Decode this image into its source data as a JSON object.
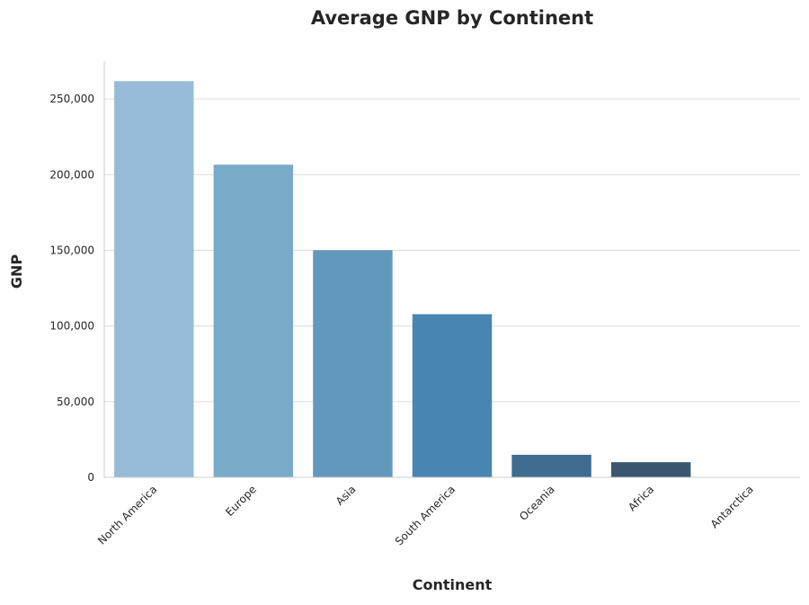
{
  "chart_data": {
    "type": "bar",
    "title": "Average GNP by Continent",
    "xlabel": "Continent",
    "ylabel": "GNP",
    "categories": [
      "North America",
      "Europe",
      "Asia",
      "South America",
      "Oceania",
      "Africa",
      "Antarctica"
    ],
    "values": [
      261800,
      206600,
      150100,
      107800,
      14900,
      10000,
      0
    ],
    "ylim": [
      0,
      275000
    ],
    "yticks": [
      0,
      50000,
      100000,
      150000,
      200000,
      250000
    ],
    "ytick_labels": [
      "0",
      "50,000",
      "100,000",
      "150,000",
      "200,000",
      "250,000"
    ],
    "colors": [
      "#98bcd7",
      "#7aaac9",
      "#6398bd",
      "#4985b3",
      "#3f6c90",
      "#3b566f",
      "#2f3d4d"
    ],
    "grid": "horizontal",
    "legend": "none"
  }
}
